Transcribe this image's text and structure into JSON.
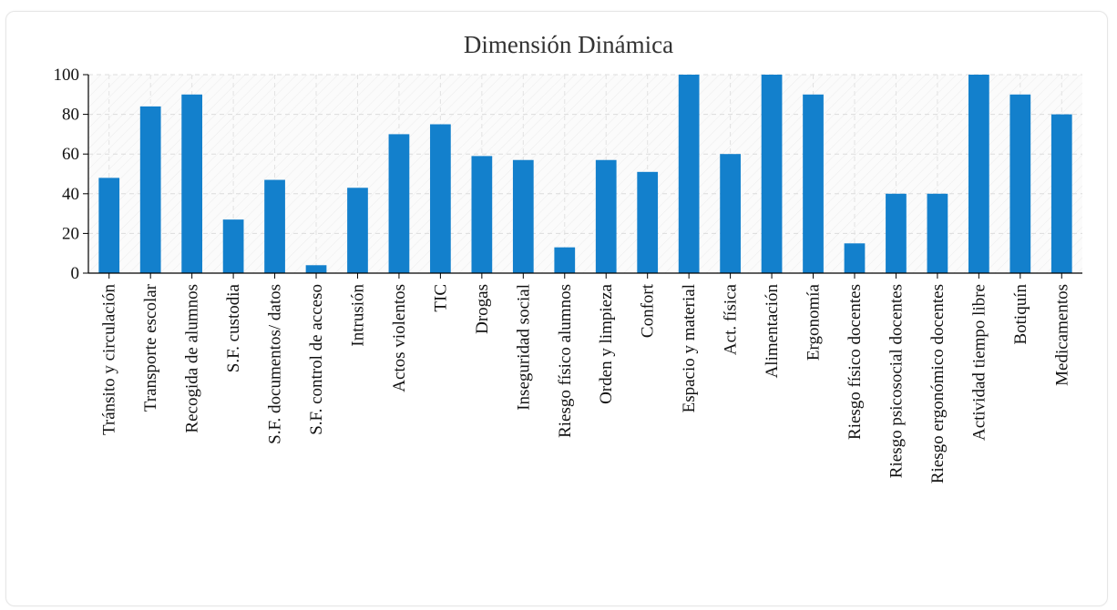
{
  "chart_data": {
    "type": "bar",
    "title": "Dimensión Dinámica",
    "xlabel": "",
    "ylabel": "",
    "ylim": [
      0,
      100
    ],
    "yticks": [
      0,
      20,
      40,
      60,
      80,
      100
    ],
    "grid": true,
    "bar_color": "#1380cc",
    "categories": [
      "Tránsito y circulación",
      "Transporte escolar",
      "Recogida de alumnos",
      "S.F. custodia",
      "S.F. documentos/ datos",
      "S.F. control de acceso",
      "Intrusión",
      "Actos violentos",
      "TIC",
      "Drogas",
      "Inseguridad social",
      "Riesgo físico alumnos",
      "Orden y limpieza",
      "Confort",
      "Espacio y material",
      "Act. física",
      "Alimentación",
      "Ergonomía",
      "Riesgo físico docentes",
      "Riesgo psicosocial docentes",
      "Riesgo ergonómico docentes",
      "Actividad tiempo libre",
      "Botiquín",
      "Medicamentos"
    ],
    "values": [
      48,
      84,
      90,
      27,
      47,
      4,
      43,
      70,
      75,
      59,
      57,
      13,
      57,
      51,
      100,
      60,
      100,
      90,
      15,
      40,
      40,
      100,
      90,
      80
    ]
  }
}
